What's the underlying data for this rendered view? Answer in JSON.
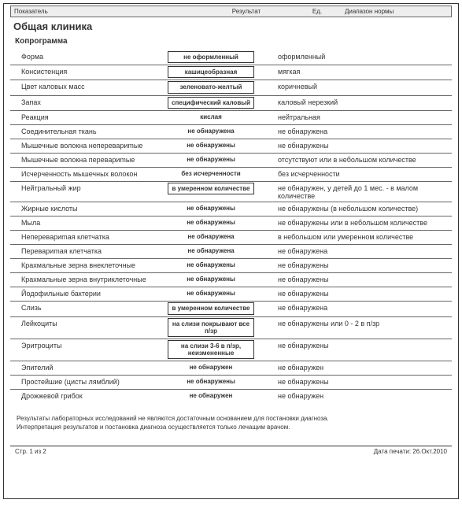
{
  "header": {
    "col1": "Показатель",
    "col2": "Результат",
    "col3": "Ед.",
    "col4": "Диапазон нормы"
  },
  "section_title": "Общая клиника",
  "subsection": "Копрограмма",
  "rows": [
    {
      "name": "Форма",
      "result": "не оформленный",
      "boxed": true,
      "norm": "оформленный"
    },
    {
      "name": "Консистенция",
      "result": "кашицеобразная",
      "boxed": true,
      "norm": "мягкая"
    },
    {
      "name": "Цвет каловых масс",
      "result": "зеленовато-желтый",
      "boxed": true,
      "norm": "коричневый"
    },
    {
      "name": "Запах",
      "result": "специфический каловый",
      "boxed": true,
      "norm": "каловый нерезкий"
    },
    {
      "name": "Реакция",
      "result": "кислая",
      "boxed": false,
      "norm": "нейтральная"
    },
    {
      "name": "Соединительная ткань",
      "result": "не обнаружена",
      "boxed": false,
      "norm": "не обнаружена"
    },
    {
      "name": "Мышечные волокна неперевариmые",
      "result": "не обнаружены",
      "boxed": false,
      "norm": "не обнаружены"
    },
    {
      "name": "Мышечные волокна перевариmые",
      "result": "не обнаружены",
      "boxed": false,
      "norm": "отсутствуют или в небольшом количестве"
    },
    {
      "name": "Исчерченность мышечных волокон",
      "result": "без исчерченности",
      "boxed": false,
      "norm": "без исчерченности"
    },
    {
      "name": "Нейтральный жир",
      "result": "в умеренном количестве",
      "boxed": true,
      "norm": "не обнаружен, у детей до 1 мес. - в малом количестве"
    },
    {
      "name": "Жирные кислоты",
      "result": "не обнаружены",
      "boxed": false,
      "norm": "не обнаружены (в небольшом количестве)"
    },
    {
      "name": "Мыла",
      "result": "не обнаружены",
      "boxed": false,
      "norm": "не обнаружены или в небольшом количестве"
    },
    {
      "name": "Неперевариmая клетчатка",
      "result": "не обнаружена",
      "boxed": false,
      "norm": "в небольшом или умеренном количестве"
    },
    {
      "name": "Перевариmая клетчатка",
      "result": "не обнаружена",
      "boxed": false,
      "norm": "не обнаружена"
    },
    {
      "name": "Крахмальные зерна внеклеточные",
      "result": "не обнаружены",
      "boxed": false,
      "norm": "не обнаружены"
    },
    {
      "name": "Крахмальные зерна внутриклеточные",
      "result": "не обнаружены",
      "boxed": false,
      "norm": "не обнаружены"
    },
    {
      "name": "Йодофильные бактерии",
      "result": "не обнаружены",
      "boxed": false,
      "norm": "не обнаружены"
    },
    {
      "name": "Слизь",
      "result": "в умеренном количестве",
      "boxed": true,
      "norm": "не обнаружена"
    },
    {
      "name": "Лейкоциты",
      "result": "на слизи покрывают все п/зр",
      "boxed": true,
      "norm": "не обнаружены или 0 - 2 в п/зр"
    },
    {
      "name": "Эритроциты",
      "result": "на слизи 3-6 в п/зр, неизмененные",
      "boxed": true,
      "norm": "не обнаружены"
    },
    {
      "name": "Эпителий",
      "result": "не обнаружен",
      "boxed": false,
      "norm": "не обнаружен"
    },
    {
      "name": "Простейшие (цисты лямблий)",
      "result": "не обнаружены",
      "boxed": false,
      "norm": "не обнаружены"
    },
    {
      "name": "Дрожжевой грибок",
      "result": "не обнаружен",
      "boxed": false,
      "norm": "не обнаружен"
    }
  ],
  "disclaimer_line1": "Результаты лабораторных исследований не являются достаточным основанием для постановки диагноза.",
  "disclaimer_line2": "Интерпретация результатов и постановка диагноза осуществляется только лечащим врачом.",
  "footer": {
    "page": "Стр. 1 из 2",
    "date": "Дата печати: 26.Окт.2010"
  },
  "colors": {
    "text": "#333333",
    "border": "#666666",
    "header_bg": "#eeeeee",
    "page_bg": "#ffffff"
  }
}
